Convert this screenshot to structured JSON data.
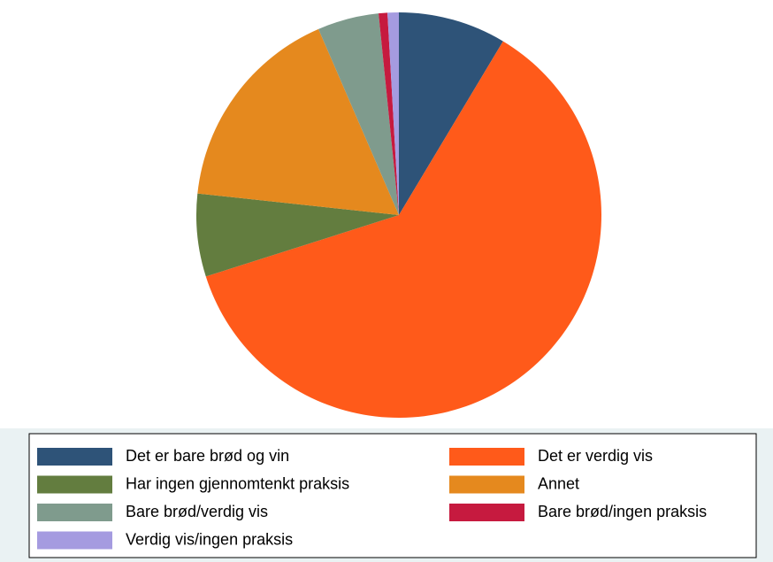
{
  "chart_data": {
    "type": "pie",
    "categories": [
      "Det er bare brød og vin",
      "Det er verdig vis",
      "Har ingen gjennomtenkt praksis",
      "Annet",
      "Bare brød/verdig vis",
      "Bare brød/ingen praksis",
      "Verdig vis/ingen praksis"
    ],
    "values": [
      8.6,
      61.5,
      6.6,
      16.8,
      4.9,
      0.7,
      0.9
    ],
    "colors": [
      "#2e5378",
      "#ff5a1a",
      "#637d3f",
      "#e5891e",
      "#7f9b8d",
      "#c61a3f",
      "#a59be0"
    ],
    "legend": "bottom"
  }
}
